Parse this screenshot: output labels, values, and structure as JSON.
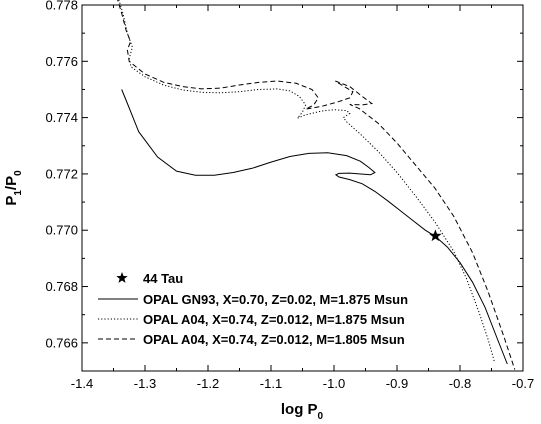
{
  "chart_data": {
    "type": "line",
    "xlabel": {
      "main": "log P",
      "sub": "0"
    },
    "ylabel": {
      "p1": "P",
      "p1sub": "1",
      "slash": "/P",
      "p0sub": "0"
    },
    "xlim": [
      -1.4,
      -0.7
    ],
    "ylim": [
      0.765,
      0.778
    ],
    "grid": false,
    "legend_position": "bottom-left",
    "x_ticks": [
      -1.4,
      -1.3,
      -1.2,
      -1.1,
      -1.0,
      -0.9,
      -0.8,
      -0.7
    ],
    "x_tick_labels": [
      "-1.4",
      "-1.3",
      "-1.2",
      "-1.1",
      "-1.0",
      "-0.9",
      "-0.8",
      "-0.7"
    ],
    "y_ticks": [
      0.766,
      0.768,
      0.77,
      0.772,
      0.774,
      0.776,
      0.778
    ],
    "y_tick_labels": [
      "0.766",
      "0.768",
      "0.770",
      "0.772",
      "0.774",
      "0.776",
      "0.778"
    ],
    "star": {
      "name": "44 Tau",
      "x": -0.839,
      "y": 0.7698
    },
    "series": [
      {
        "name": "OPAL GN93, X=0.70, Z=0.02, M=1.875 Msun",
        "style": "solid",
        "points": [
          [
            -1.337,
            0.775
          ],
          [
            -1.328,
            0.7745
          ],
          [
            -1.31,
            0.7735
          ],
          [
            -1.28,
            0.7726
          ],
          [
            -1.25,
            0.7721
          ],
          [
            -1.22,
            0.77195
          ],
          [
            -1.19,
            0.77195
          ],
          [
            -1.16,
            0.77205
          ],
          [
            -1.13,
            0.7722
          ],
          [
            -1.1,
            0.77242
          ],
          [
            -1.07,
            0.77262
          ],
          [
            -1.04,
            0.77273
          ],
          [
            -1.01,
            0.77275
          ],
          [
            -0.98,
            0.77265
          ],
          [
            -0.958,
            0.77245
          ],
          [
            -0.945,
            0.77223
          ],
          [
            -0.935,
            0.77205
          ],
          [
            -0.942,
            0.77197
          ],
          [
            -0.96,
            0.772
          ],
          [
            -0.975,
            0.77203
          ],
          [
            -0.992,
            0.77202
          ],
          [
            -0.997,
            0.77197
          ],
          [
            -0.992,
            0.77189
          ],
          [
            -0.975,
            0.7718
          ],
          [
            -0.955,
            0.77165
          ],
          [
            -0.935,
            0.77138
          ],
          [
            -0.915,
            0.77105
          ],
          [
            -0.895,
            0.7707
          ],
          [
            -0.875,
            0.77035
          ],
          [
            -0.855,
            0.77
          ],
          [
            -0.839,
            0.76978
          ],
          [
            -0.82,
            0.7694
          ],
          [
            -0.8,
            0.76885
          ],
          [
            -0.78,
            0.76815
          ],
          [
            -0.76,
            0.76725
          ],
          [
            -0.74,
            0.7661
          ],
          [
            -0.725,
            0.76525
          ]
        ]
      },
      {
        "name": "OPAL A04, X=0.74, Z=0.012, M=1.875 Msun",
        "style": "dotted",
        "points": [
          [
            -1.343,
            0.7783
          ],
          [
            -1.335,
            0.7777
          ],
          [
            -1.328,
            0.777
          ],
          [
            -1.32,
            0.7765
          ],
          [
            -1.325,
            0.7761
          ],
          [
            -1.322,
            0.7758
          ],
          [
            -1.3,
            0.77545
          ],
          [
            -1.27,
            0.77515
          ],
          [
            -1.24,
            0.77498
          ],
          [
            -1.21,
            0.7749
          ],
          [
            -1.18,
            0.77488
          ],
          [
            -1.15,
            0.77492
          ],
          [
            -1.12,
            0.775
          ],
          [
            -1.09,
            0.77502
          ],
          [
            -1.07,
            0.77495
          ],
          [
            -1.055,
            0.77475
          ],
          [
            -1.045,
            0.77445
          ],
          [
            -1.05,
            0.7742
          ],
          [
            -1.058,
            0.77398
          ],
          [
            -1.045,
            0.7741
          ],
          [
            -1.02,
            0.77423
          ],
          [
            -1.0,
            0.77428
          ],
          [
            -0.98,
            0.77425
          ],
          [
            -0.975,
            0.77415
          ],
          [
            -0.985,
            0.774
          ],
          [
            -0.98,
            0.77385
          ],
          [
            -0.955,
            0.77335
          ],
          [
            -0.93,
            0.7728
          ],
          [
            -0.9,
            0.77205
          ],
          [
            -0.87,
            0.7712
          ],
          [
            -0.84,
            0.7703
          ],
          [
            -0.81,
            0.76925
          ],
          [
            -0.79,
            0.7683
          ],
          [
            -0.77,
            0.7671
          ],
          [
            -0.755,
            0.7661
          ],
          [
            -0.745,
            0.7653
          ]
        ]
      },
      {
        "name": "OPAL A04, X=0.74, Z=0.012, M=1.805 Msun",
        "style": "dashed",
        "points": [
          [
            -1.345,
            0.7783
          ],
          [
            -1.337,
            0.7777
          ],
          [
            -1.33,
            0.7771
          ],
          [
            -1.323,
            0.7767
          ],
          [
            -1.328,
            0.7764
          ],
          [
            -1.325,
            0.776
          ],
          [
            -1.3,
            0.77555
          ],
          [
            -1.27,
            0.77525
          ],
          [
            -1.24,
            0.7751
          ],
          [
            -1.21,
            0.77502
          ],
          [
            -1.18,
            0.77505
          ],
          [
            -1.15,
            0.77516
          ],
          [
            -1.12,
            0.77525
          ],
          [
            -1.09,
            0.7753
          ],
          [
            -1.06,
            0.77522
          ],
          [
            -1.035,
            0.775
          ],
          [
            -1.025,
            0.7747
          ],
          [
            -1.032,
            0.77445
          ],
          [
            -1.045,
            0.7743
          ],
          [
            -1.02,
            0.7744
          ],
          [
            -0.995,
            0.77455
          ],
          [
            -0.975,
            0.7747
          ],
          [
            -0.97,
            0.77492
          ],
          [
            -0.985,
            0.77512
          ],
          [
            -0.998,
            0.7753
          ],
          [
            -0.975,
            0.7751
          ],
          [
            -0.955,
            0.77475
          ],
          [
            -0.94,
            0.7745
          ],
          [
            -0.955,
            0.77445
          ],
          [
            -0.975,
            0.77447
          ],
          [
            -0.96,
            0.77432
          ],
          [
            -0.93,
            0.7738
          ],
          [
            -0.9,
            0.7731
          ],
          [
            -0.87,
            0.7723
          ],
          [
            -0.84,
            0.7715
          ],
          [
            -0.81,
            0.7705
          ],
          [
            -0.78,
            0.7692
          ],
          [
            -0.755,
            0.7678
          ],
          [
            -0.73,
            0.7662
          ],
          [
            -0.713,
            0.76505
          ]
        ]
      }
    ]
  }
}
